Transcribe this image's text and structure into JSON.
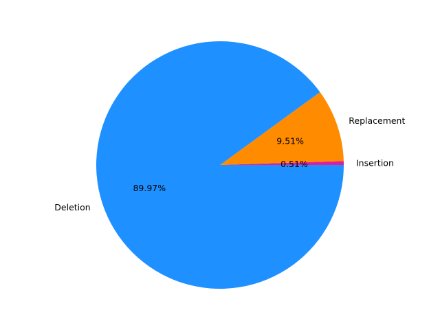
{
  "chart_data": {
    "type": "pie",
    "slices": [
      {
        "label": "Insertion",
        "value": 0.51,
        "pct_text": "0.51%",
        "color": "#DC1FA0"
      },
      {
        "label": "Replacement",
        "value": 9.51,
        "pct_text": "9.51%",
        "color": "#FF8C00"
      },
      {
        "label": "Deletion",
        "value": 89.97,
        "pct_text": "89.97%",
        "color": "#1E90FF"
      }
    ],
    "start_angle_deg": 0,
    "direction": "counterclockwise",
    "legend": "none"
  }
}
